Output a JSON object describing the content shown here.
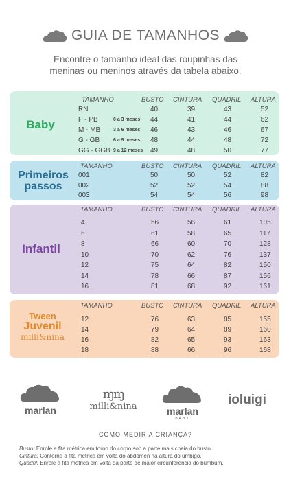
{
  "header": {
    "title": "GUIA DE TAMANHOS"
  },
  "subtitle": {
    "line1": "Encontre o tamanho ideal das roupinhas das",
    "line2": "meninas ou meninos através da tabela abaixo."
  },
  "columns": {
    "tamanho": "TAMANHO",
    "busto": "BUSTO",
    "cintura": "CINTURA",
    "quadril": "QUADRIL",
    "altura": "ALTURA"
  },
  "colors": {
    "baby": "#d2f0e4",
    "primeiros": "#bfe3ee",
    "infantil": "#dcd2e7",
    "juvenil": "#fad7bb",
    "baby_label": "#2eab5e",
    "primeiros_label": "#2a6f94",
    "infantil_label": "#7b43a5",
    "juvenil_label": "#e08a2c"
  },
  "sections": [
    {
      "key": "baby",
      "label": "Baby",
      "rows": [
        {
          "size": "RN",
          "extra": "",
          "busto": "40",
          "cintura": "39",
          "quadril": "43",
          "altura": "52"
        },
        {
          "size": "P - PB",
          "extra": "0 a 3 meses",
          "busto": "44",
          "cintura": "41",
          "quadril": "44",
          "altura": "62"
        },
        {
          "size": "M - MB",
          "extra": "3 a 6 meses",
          "busto": "46",
          "cintura": "43",
          "quadril": "46",
          "altura": "67"
        },
        {
          "size": "G - GB",
          "extra": "6 a 9 meses",
          "busto": "48",
          "cintura": "44",
          "quadril": "48",
          "altura": "72"
        },
        {
          "size": "GG - GGB",
          "extra": "9 a 12 meses",
          "busto": "49",
          "cintura": "48",
          "quadril": "50",
          "altura": "77"
        }
      ]
    },
    {
      "key": "primeiros",
      "label_line1": "Primeiros",
      "label_line2": "passos",
      "rows": [
        {
          "size": "001",
          "busto": "50",
          "cintura": "50",
          "quadril": "52",
          "altura": "82"
        },
        {
          "size": "002",
          "busto": "52",
          "cintura": "52",
          "quadril": "54",
          "altura": "88"
        },
        {
          "size": "003",
          "busto": "54",
          "cintura": "54",
          "quadril": "56",
          "altura": "98"
        }
      ]
    },
    {
      "key": "infantil",
      "label": "Infantil",
      "rows": [
        {
          "size": "4",
          "busto": "56",
          "cintura": "56",
          "quadril": "61",
          "altura": "105"
        },
        {
          "size": "6",
          "busto": "61",
          "cintura": "58",
          "quadril": "65",
          "altura": "117"
        },
        {
          "size": "8",
          "busto": "66",
          "cintura": "60",
          "quadril": "70",
          "altura": "128"
        },
        {
          "size": "10",
          "busto": "70",
          "cintura": "62",
          "quadril": "76",
          "altura": "137"
        },
        {
          "size": "12",
          "busto": "75",
          "cintura": "64",
          "quadril": "82",
          "altura": "150"
        },
        {
          "size": "14",
          "busto": "78",
          "cintura": "66",
          "quadril": "87",
          "altura": "156"
        },
        {
          "size": "16",
          "busto": "81",
          "cintura": "68",
          "quadril": "92",
          "altura": "161"
        }
      ]
    },
    {
      "key": "juvenil",
      "label_line1": "Tween",
      "label_line2": "Juvenil",
      "label_line3": "milli&nina",
      "rows": [
        {
          "size": "12",
          "busto": "76",
          "cintura": "63",
          "quadril": "85",
          "altura": "155"
        },
        {
          "size": "14",
          "busto": "79",
          "cintura": "64",
          "quadril": "89",
          "altura": "160"
        },
        {
          "size": "16",
          "busto": "82",
          "cintura": "65",
          "quadril": "93",
          "altura": "163"
        },
        {
          "size": "18",
          "busto": "88",
          "cintura": "66",
          "quadril": "96",
          "altura": "168"
        }
      ]
    }
  ],
  "brands": {
    "marlan": "marlan",
    "millinina": "milli&nina",
    "marlan_baby": "marlan",
    "marlan_baby_sub": "BABY",
    "ioluigi": "ioluigi"
  },
  "measure": {
    "title": "COMO MEDIR A CRIANÇA?",
    "busto_label": "Busto:",
    "busto_text": " Enrole a fita métrica em torno do corpo sob a parte mais cheia do busto.",
    "cintura_label": "Cintura:",
    "cintura_text": " Contorne a fita métrica em volta do abdômen na altura do umbigo.",
    "quadril_label": "Quadril:",
    "quadril_text": " Enrole a fita métrica em volta da parte de maior circunferência do bumbum."
  }
}
